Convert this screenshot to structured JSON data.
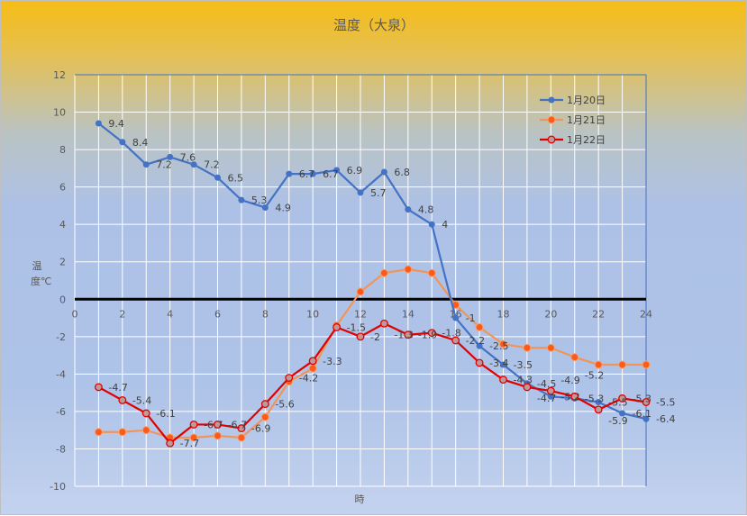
{
  "chart_data": {
    "type": "line",
    "title": "温度（大泉）",
    "xlabel": "時",
    "ylabel": "温度℃",
    "xlim": [
      0,
      24
    ],
    "ylim": [
      -10,
      12
    ],
    "xticks": [
      0,
      2,
      4,
      6,
      8,
      10,
      12,
      14,
      16,
      18,
      20,
      22,
      24
    ],
    "yticks": [
      -10,
      -8,
      -6,
      -4,
      -2,
      0,
      2,
      4,
      6,
      8,
      10,
      12
    ],
    "grid": true,
    "legend_position": "top-right",
    "x": [
      1,
      2,
      3,
      4,
      5,
      6,
      7,
      8,
      9,
      10,
      11,
      12,
      13,
      14,
      15,
      16,
      17,
      18,
      19,
      20,
      21,
      22,
      23,
      24
    ],
    "series": [
      {
        "name": "1月20日",
        "color": "#4472c4",
        "marker": "filled-circle",
        "data_labels": true,
        "values": [
          9.4,
          8.4,
          7.2,
          7.6,
          7.2,
          6.5,
          5.3,
          4.9,
          6.7,
          6.7,
          6.9,
          5.7,
          6.8,
          4.8,
          4,
          -1,
          -2.5,
          -3.5,
          -4.5,
          -5.2,
          -5.3,
          -5.5,
          -6.1,
          -6.4
        ]
      },
      {
        "name": "1月21日",
        "color": "#ed7d31",
        "marker": "orange-circle",
        "data_labels": false,
        "values": [
          -7.1,
          -7.1,
          -7.0,
          -7.4,
          -7.4,
          -7.3,
          -7.4,
          -6.3,
          -4.4,
          -3.7,
          -1.4,
          0.4,
          1.4,
          1.6,
          1.4,
          -0.3,
          -1.5,
          -2.4,
          -2.6,
          -2.6,
          -3.1,
          -3.5,
          -3.5,
          -3.5
        ]
      },
      {
        "name": "1月22日",
        "color": "#e00000",
        "marker": "hollow-circle",
        "data_labels": true,
        "values": [
          -4.7,
          -5.4,
          -6.1,
          -7.7,
          -6.7,
          -6.7,
          -6.9,
          -5.6,
          -4.2,
          -3.3,
          -1.5,
          -2,
          -1.3,
          -1.9,
          -1.8,
          -2.2,
          -3.4,
          -4.3,
          -4.7,
          -4.9,
          -5.2,
          -5.9,
          -5.3,
          -5.5
        ]
      }
    ]
  }
}
